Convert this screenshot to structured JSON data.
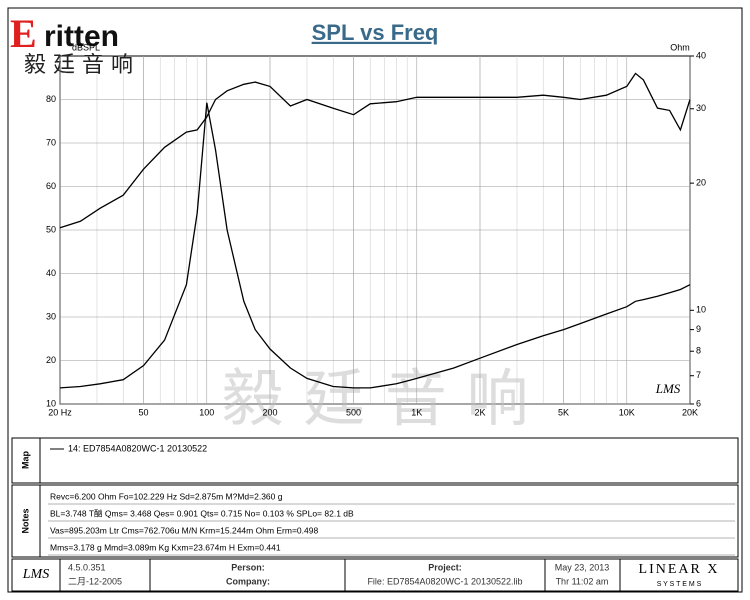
{
  "logo": {
    "initial": "E",
    "brand": "ritten",
    "chinese": "毅 廷 音 响"
  },
  "watermark": "毅 廷 音 响",
  "plot_logo": "LMS",
  "chart_data": {
    "type": "line",
    "title": "SPL vs Freq",
    "y_label": "dBSPL",
    "y2_label": "Ohm",
    "xscale": "log",
    "y2scale": "log",
    "grid": true,
    "xlim": [
      20,
      20000
    ],
    "xticks": [
      {
        "value": 20,
        "label": "20 Hz"
      },
      50,
      100,
      200,
      500,
      {
        "value": 1000,
        "label": "1K"
      },
      {
        "value": 2000,
        "label": "2K"
      },
      {
        "value": 5000,
        "label": "5K"
      },
      {
        "value": 10000,
        "label": "10K"
      },
      {
        "value": 20000,
        "label": "20K"
      }
    ],
    "ylim": [
      10,
      90
    ],
    "yticks": [
      10,
      20,
      30,
      40,
      50,
      60,
      70,
      80
    ],
    "y2lim": [
      6,
      40
    ],
    "y2ticks": [
      6,
      7,
      8,
      9,
      10,
      20,
      30,
      40
    ],
    "x": [
      20,
      25,
      31,
      40,
      50,
      63,
      80,
      90,
      100,
      110,
      125,
      150,
      170,
      200,
      250,
      300,
      400,
      500,
      600,
      800,
      1000,
      1500,
      2000,
      3000,
      4000,
      5000,
      6000,
      8000,
      10000,
      11000,
      12000,
      14000,
      16000,
      18000,
      20000
    ],
    "series": [
      {
        "name": "14: ED7854A0820WC-1  20130522",
        "color": "#000000",
        "values": [
          50.5,
          52,
          55,
          58,
          64,
          69,
          72.5,
          73,
          76,
          80,
          82,
          83.5,
          84,
          83,
          78.5,
          80,
          78,
          76.5,
          79,
          79.5,
          80.5,
          80.5,
          80.5,
          80.5,
          81,
          80.5,
          80,
          81,
          83,
          86,
          84.5,
          78,
          77.5,
          73,
          80
        ]
      },
      {
        "color": "#000000",
        "axis": "y2",
        "values": [
          6.55,
          6.6,
          6.7,
          6.85,
          7.4,
          8.5,
          11.5,
          17,
          31,
          24,
          15.5,
          10.5,
          9,
          8.1,
          7.3,
          6.9,
          6.6,
          6.55,
          6.55,
          6.7,
          6.9,
          7.3,
          7.7,
          8.3,
          8.7,
          9.0,
          9.3,
          9.8,
          10.2,
          10.5,
          10.6,
          10.8,
          11,
          11.2,
          11.5
        ]
      }
    ]
  },
  "panels": {
    "map": "Map",
    "notes": "Notes"
  },
  "notes": [
    "Revc=6.200 Ohm  Fo=102.229 Hz  Sd=2.875m M?Md=2.360 g",
    "BL=3.748 T酗  Qms= 3.468  Qes= 0.901  Qts= 0.715  No= 0.103 %  SPLo= 82.1 dB",
    "Vas=895.203m Ltr  Cms=762.706u M/N  Krm=15.244m Ohm  Erm=0.498",
    "Mms=3.178 g  Mmd=3.089m Kg  Kxm=23.674m H  Exm=0.441"
  ],
  "footer": {
    "logo": "LMS",
    "version": "4.5.0.351",
    "build_date": "二月-12-2005",
    "person": "Person:",
    "company": "Company:",
    "project": "Project:",
    "file": "File: ED7854A0820WC-1  20130522.lib",
    "date": "May 23, 2013",
    "time": "Thr 11:02 am",
    "brand": "LINEAR X",
    "brand_sub": "S Y S T E M S"
  }
}
